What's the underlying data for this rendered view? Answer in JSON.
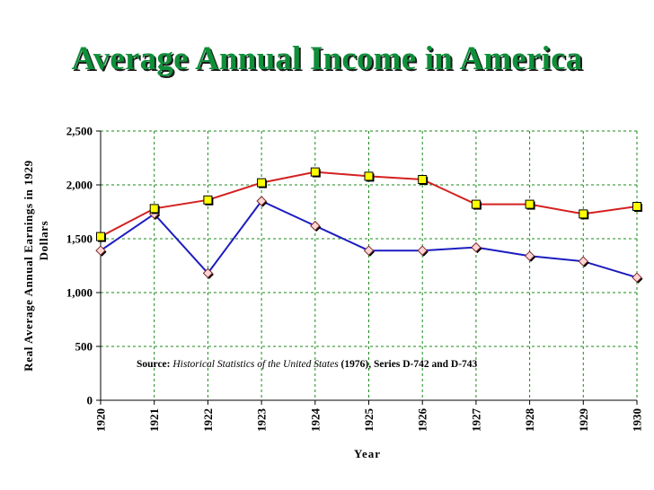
{
  "chart_data": {
    "type": "line",
    "title": "Average Annual Income in America",
    "xlabel": "Year",
    "ylabel_line1": "Real Average Annual Earnings in 1929",
    "ylabel_line2": "Dollars",
    "categories": [
      "1920",
      "1921",
      "1922",
      "1923",
      "1924",
      "1925",
      "1926",
      "1927",
      "1928",
      "1929",
      "1930"
    ],
    "ylim": [
      0,
      2500
    ],
    "yticks": [
      0,
      500,
      1000,
      1500,
      2000,
      2500
    ],
    "ytick_labels": [
      "0",
      "500",
      "1,000",
      "1,500",
      "2,000",
      "2,500"
    ],
    "grid": true,
    "series": [
      {
        "name": "Series D-742",
        "color": "#d42020",
        "marker": "square",
        "marker_color": "#ffff00",
        "values": [
          1520,
          1780,
          1860,
          2020,
          2120,
          2080,
          2050,
          1820,
          1820,
          1730,
          1800
        ]
      },
      {
        "name": "Series D-743",
        "color": "#1c1cc0",
        "marker": "diamond",
        "marker_color": "#ffd6d6",
        "values": [
          1390,
          1730,
          1180,
          1850,
          1620,
          1390,
          1390,
          1420,
          1340,
          1290,
          1140
        ]
      }
    ],
    "annotation": {
      "prefix": "Source: ",
      "italic": "Historical Statistics of the United States",
      "suffix": " (1976), Series D-742 and D-743"
    }
  }
}
